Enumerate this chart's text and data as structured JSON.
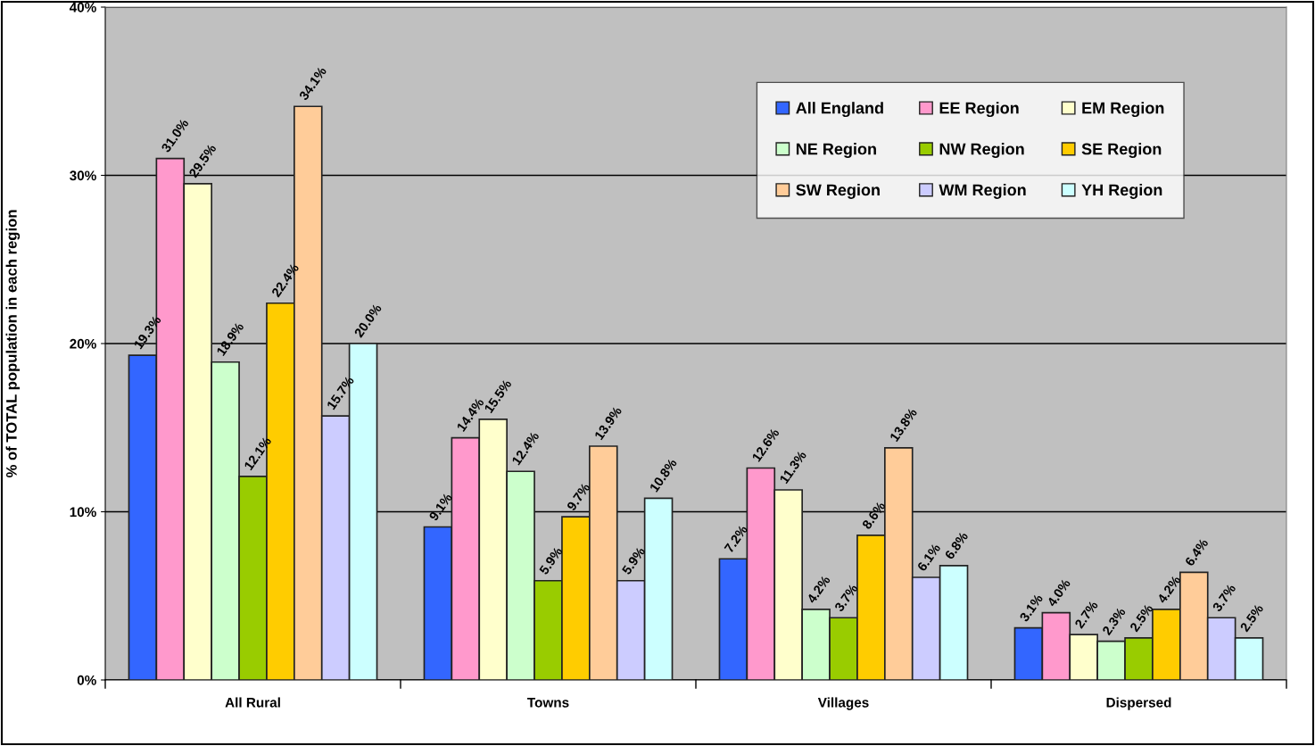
{
  "chart_data": {
    "type": "bar",
    "ylabel": "% of TOTAL population in each region",
    "categories": [
      "All Rural",
      "Towns",
      "Villages",
      "Dispersed"
    ],
    "series": [
      {
        "name": "All England",
        "color": "#3366ff",
        "values": [
          19.3,
          9.1,
          7.2,
          3.1
        ],
        "value_labels": [
          "19.3%",
          "9.1%",
          "7.2%",
          "3.1%"
        ]
      },
      {
        "name": "EE Region",
        "color": "#ff99cc",
        "values": [
          31.0,
          14.4,
          12.6,
          4.0
        ],
        "value_labels": [
          "31.0%",
          "14.4%",
          "12.6%",
          "4.0%"
        ]
      },
      {
        "name": "EM Region",
        "color": "#ffffcc",
        "values": [
          29.5,
          15.5,
          11.3,
          2.7
        ],
        "value_labels": [
          "29.5%",
          "15.5%",
          "11.3%",
          "2.7%"
        ]
      },
      {
        "name": "NE Region",
        "color": "#ccffcc",
        "values": [
          18.9,
          12.4,
          4.2,
          2.3
        ],
        "value_labels": [
          "18.9%",
          "12.4%",
          "4.2%",
          "2.3%"
        ]
      },
      {
        "name": "NW Region",
        "color": "#99cc00",
        "values": [
          12.1,
          5.9,
          3.7,
          2.5
        ],
        "value_labels": [
          "12.1%",
          "5.9%",
          "3.7%",
          "2.5%"
        ]
      },
      {
        "name": "SE Region",
        "color": "#ffcc00",
        "values": [
          22.4,
          9.7,
          8.6,
          4.2
        ],
        "value_labels": [
          "22.4%",
          "9.7%",
          "8.6%",
          "4.2%"
        ]
      },
      {
        "name": "SW Region",
        "color": "#ffcc99",
        "values": [
          34.1,
          13.9,
          13.8,
          6.4
        ],
        "value_labels": [
          "34.1%",
          "13.9%",
          "13.8%",
          "6.4%"
        ]
      },
      {
        "name": "WM Region",
        "color": "#ccccff",
        "values": [
          15.7,
          5.9,
          6.1,
          3.7
        ],
        "value_labels": [
          "15.7%",
          "5.9%",
          "6.1%",
          "3.7%"
        ]
      },
      {
        "name": "YH Region",
        "color": "#ccffff",
        "values": [
          20.0,
          10.8,
          6.8,
          2.5
        ],
        "value_labels": [
          "20.0%",
          "10.8%",
          "6.8%",
          "2.5%"
        ]
      }
    ],
    "ylim": [
      0,
      40
    ],
    "yticks": [
      {
        "value": 0,
        "label": "0%"
      },
      {
        "value": 10,
        "label": "10%"
      },
      {
        "value": 20,
        "label": "20%"
      },
      {
        "value": 30,
        "label": "30%"
      },
      {
        "value": 40,
        "label": "40%"
      }
    ],
    "grid": "y",
    "legend": "top right"
  }
}
